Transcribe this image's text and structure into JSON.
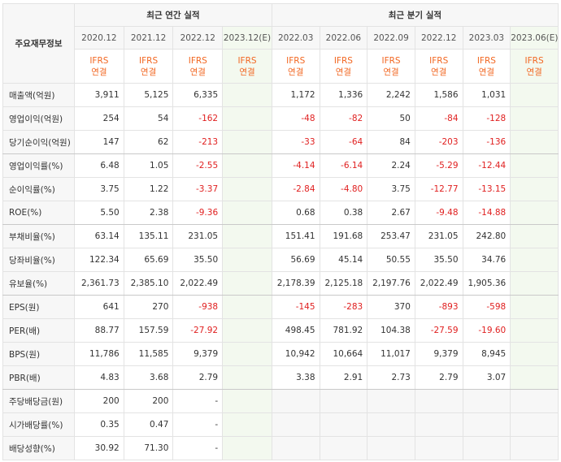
{
  "corner_label": "주요재무정보",
  "group_annual": "최근 연간 실적",
  "group_quarterly": "최근 분기 실적",
  "annual_periods": [
    "2020.12",
    "2021.12",
    "2022.12",
    "2023.12(E)"
  ],
  "quarterly_periods": [
    "2022.03",
    "2022.06",
    "2022.09",
    "2022.12",
    "2023.03",
    "2023.06(E)"
  ],
  "ifrs_top": "IFRS",
  "ifrs_bottom": "연결",
  "rows": [
    {
      "label": "매출액(억원)",
      "annual": [
        "3,911",
        "5,125",
        "6,335",
        ""
      ],
      "quarterly": [
        "1,172",
        "1,336",
        "2,242",
        "1,586",
        "1,031",
        ""
      ]
    },
    {
      "label": "영업이익(억원)",
      "annual": [
        "254",
        "54",
        "-162",
        ""
      ],
      "quarterly": [
        "-48",
        "-82",
        "50",
        "-84",
        "-128",
        ""
      ]
    },
    {
      "label": "당기순이익(억원)",
      "annual": [
        "147",
        "62",
        "-213",
        ""
      ],
      "quarterly": [
        "-33",
        "-64",
        "84",
        "-203",
        "-136",
        ""
      ]
    },
    {
      "label": "영업이익률(%)",
      "annual": [
        "6.48",
        "1.05",
        "-2.55",
        ""
      ],
      "quarterly": [
        "-4.14",
        "-6.14",
        "2.24",
        "-5.29",
        "-12.44",
        ""
      ]
    },
    {
      "label": "순이익률(%)",
      "annual": [
        "3.75",
        "1.22",
        "-3.37",
        ""
      ],
      "quarterly": [
        "-2.84",
        "-4.80",
        "3.75",
        "-12.77",
        "-13.15",
        ""
      ]
    },
    {
      "label": "ROE(%)",
      "annual": [
        "5.50",
        "2.38",
        "-9.36",
        ""
      ],
      "quarterly": [
        "0.68",
        "0.38",
        "2.67",
        "-9.48",
        "-14.88",
        ""
      ]
    },
    {
      "label": "부채비율(%)",
      "annual": [
        "63.14",
        "135.11",
        "231.05",
        ""
      ],
      "quarterly": [
        "151.41",
        "191.68",
        "253.47",
        "231.05",
        "242.80",
        ""
      ]
    },
    {
      "label": "당좌비율(%)",
      "annual": [
        "122.34",
        "65.69",
        "35.50",
        ""
      ],
      "quarterly": [
        "56.69",
        "45.14",
        "50.55",
        "35.50",
        "34.76",
        ""
      ]
    },
    {
      "label": "유보율(%)",
      "annual": [
        "2,361.73",
        "2,385.10",
        "2,022.49",
        ""
      ],
      "quarterly": [
        "2,178.39",
        "2,125.18",
        "2,197.76",
        "2,022.49",
        "1,905.36",
        ""
      ]
    },
    {
      "label": "EPS(원)",
      "annual": [
        "641",
        "270",
        "-938",
        ""
      ],
      "quarterly": [
        "-145",
        "-283",
        "370",
        "-893",
        "-598",
        ""
      ]
    },
    {
      "label": "PER(배)",
      "annual": [
        "88.77",
        "157.59",
        "-27.92",
        ""
      ],
      "quarterly": [
        "498.45",
        "781.92",
        "104.38",
        "-27.59",
        "-19.60",
        ""
      ]
    },
    {
      "label": "BPS(원)",
      "annual": [
        "11,786",
        "11,585",
        "9,379",
        ""
      ],
      "quarterly": [
        "10,942",
        "10,664",
        "11,017",
        "9,379",
        "8,945",
        ""
      ]
    },
    {
      "label": "PBR(배)",
      "annual": [
        "4.83",
        "3.68",
        "2.79",
        ""
      ],
      "quarterly": [
        "3.38",
        "2.91",
        "2.73",
        "2.79",
        "3.07",
        ""
      ]
    },
    {
      "label": "주당배당금(원)",
      "annual": [
        "200",
        "200",
        "-",
        ""
      ],
      "quarterly": null
    },
    {
      "label": "시가배당률(%)",
      "annual": [
        "0.35",
        "0.47",
        "-",
        ""
      ],
      "quarterly": null
    },
    {
      "label": "배당성향(%)",
      "annual": [
        "30.92",
        "71.30",
        "-",
        ""
      ],
      "quarterly": null
    }
  ],
  "colors": {
    "negative": "#e02020",
    "ifrs": "#f26722",
    "estimate_bg": "#f3f9ef",
    "label_bg": "#f7f7f7"
  }
}
